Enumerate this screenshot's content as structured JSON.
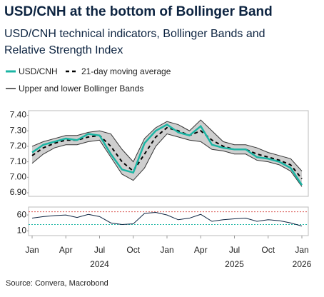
{
  "title": "USD/CNH at the bottom of Bollinger Band",
  "subtitle": "USD/CNH technical indicators, Bollinger Bands and Relative Strength Index",
  "source": "Source: Convera, Macrobond",
  "chart_data": [
    {
      "type": "line",
      "x": [
        "2024-01",
        "2024-02",
        "2024-03",
        "2024-04",
        "2024-05",
        "2024-06",
        "2024-07",
        "2024-08",
        "2024-09",
        "2024-10",
        "2024-11",
        "2024-12",
        "2025-01",
        "2025-02",
        "2025-03",
        "2025-04",
        "2025-05",
        "2025-06",
        "2025-07",
        "2025-08",
        "2025-09",
        "2025-10",
        "2025-11",
        "2025-12",
        "2026-01"
      ],
      "series": [
        {
          "name": "USD/CNH",
          "color": "#1bb5a4",
          "values": [
            7.16,
            7.21,
            7.23,
            7.25,
            7.24,
            7.28,
            7.27,
            7.15,
            7.05,
            7.03,
            7.22,
            7.3,
            7.34,
            7.29,
            7.27,
            7.33,
            7.21,
            7.19,
            7.18,
            7.18,
            7.13,
            7.12,
            7.1,
            7.06,
            6.95
          ]
        },
        {
          "name": "21-day moving average",
          "color": "#000000",
          "values": [
            7.14,
            7.19,
            7.22,
            7.24,
            7.24,
            7.26,
            7.27,
            7.2,
            7.1,
            7.04,
            7.15,
            7.26,
            7.32,
            7.3,
            7.27,
            7.3,
            7.24,
            7.2,
            7.18,
            7.18,
            7.15,
            7.13,
            7.11,
            7.08,
            6.99
          ]
        },
        {
          "name": "Upper and lower Bollinger Bands",
          "color": "#333333",
          "fill": "#cfcfcf",
          "values": [
            7.2,
            7.23,
            7.25,
            7.27,
            7.27,
            7.29,
            7.3,
            7.28,
            7.18,
            7.1,
            7.25,
            7.32,
            7.36,
            7.34,
            7.3,
            7.37,
            7.3,
            7.23,
            7.21,
            7.21,
            7.19,
            7.16,
            7.14,
            7.12,
            7.04
          ],
          "lower_values": [
            7.09,
            7.15,
            7.19,
            7.21,
            7.21,
            7.23,
            7.24,
            7.13,
            7.02,
            6.98,
            7.06,
            7.2,
            7.28,
            7.26,
            7.24,
            7.23,
            7.18,
            7.17,
            7.15,
            7.15,
            7.11,
            7.1,
            7.08,
            7.04,
            6.94
          ]
        }
      ],
      "ylim": [
        6.877,
        7.43
      ],
      "yticks": [
        {
          "value": 6.9,
          "label": "6.90"
        },
        {
          "value": 7.0,
          "label": "7.00"
        },
        {
          "value": 7.1,
          "label": "7.10"
        },
        {
          "value": 7.2,
          "label": "7.20"
        },
        {
          "value": 7.3,
          "label": "7.30"
        },
        {
          "value": 7.4,
          "label": "7.40"
        }
      ]
    },
    {
      "type": "line",
      "x": [
        "2024-01",
        "2024-02",
        "2024-03",
        "2024-04",
        "2024-05",
        "2024-06",
        "2024-07",
        "2024-08",
        "2024-09",
        "2024-10",
        "2024-11",
        "2024-12",
        "2025-01",
        "2025-02",
        "2025-03",
        "2025-04",
        "2025-05",
        "2025-06",
        "2025-07",
        "2025-08",
        "2025-09",
        "2025-10",
        "2025-11",
        "2025-12",
        "2026-01"
      ],
      "series": [
        {
          "color": "#0c2340",
          "values": [
            50,
            55,
            58,
            60,
            52,
            62,
            55,
            35,
            30,
            32,
            65,
            68,
            60,
            45,
            50,
            62,
            40,
            45,
            48,
            50,
            40,
            45,
            42,
            35,
            25
          ]
        }
      ],
      "reference_lines": [
        {
          "value": 70,
          "color": "#d9534f"
        },
        {
          "value": 30,
          "color": "#1bb5a4"
        }
      ],
      "ylim": [
        -5,
        85
      ],
      "yticks": [
        10,
        60
      ],
      "xticks": [
        {
          "value": "2024-01",
          "label": "Jan"
        },
        {
          "value": "2024-04",
          "label": "Apr"
        },
        {
          "value": "2024-07",
          "label": "Jul"
        },
        {
          "value": "2024-10",
          "label": "Oct"
        },
        {
          "value": "2025-01",
          "label": "Jan"
        },
        {
          "value": "2025-04",
          "label": "Apr"
        },
        {
          "value": "2025-07",
          "label": "Jul"
        },
        {
          "value": "2025-10",
          "label": "Oct"
        },
        {
          "value": "2026-01",
          "label": "Jan"
        }
      ],
      "year_labels": [
        {
          "value": "2024-07",
          "label": "2024"
        },
        {
          "value": "2025-07",
          "label": "2025"
        },
        {
          "value": "2026-01",
          "label": "2026"
        }
      ]
    }
  ]
}
